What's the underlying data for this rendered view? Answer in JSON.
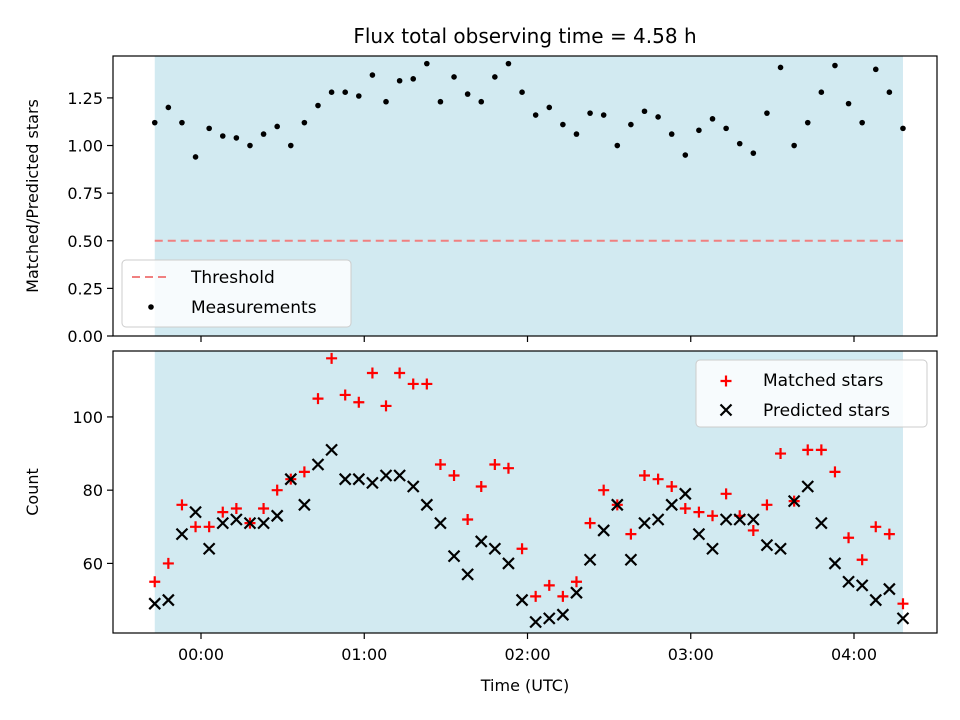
{
  "chart_data": [
    {
      "type": "scatter",
      "title": "Flux total observing time = 4.58 h",
      "ylabel": "Matched/Predicted stars",
      "xlabel": "",
      "ylim": [
        0,
        1.47
      ],
      "yticks": [
        "0.00",
        "0.25",
        "0.50",
        "0.75",
        "1.00",
        "1.25"
      ],
      "xticks": [
        "00:00",
        "01:00",
        "02:00",
        "03:00",
        "04:00"
      ],
      "shaded_span": {
        "start": "23:43",
        "end": "04:18",
        "color": "#add8e6"
      },
      "threshold": {
        "name": "Threshold",
        "value": 0.5,
        "color": "#f08080",
        "style": "dashed"
      },
      "legend": {
        "placement": "lower-left",
        "entries": [
          "Threshold",
          "Measurements"
        ]
      },
      "series": [
        {
          "name": "Measurements",
          "color": "#000000",
          "marker": "dot",
          "x": [
            "23:43",
            "23:48",
            "23:53",
            "23:58",
            "00:03",
            "00:08",
            "00:13",
            "00:18",
            "00:23",
            "00:28",
            "00:33",
            "00:38",
            "00:43",
            "00:48",
            "00:53",
            "00:58",
            "01:03",
            "01:08",
            "01:13",
            "01:18",
            "01:23",
            "01:28",
            "01:33",
            "01:38",
            "01:43",
            "01:48",
            "01:53",
            "01:58",
            "02:03",
            "02:08",
            "02:13",
            "02:18",
            "02:23",
            "02:28",
            "02:33",
            "02:38",
            "02:43",
            "02:48",
            "02:53",
            "02:58",
            "03:03",
            "03:08",
            "03:13",
            "03:18",
            "03:23",
            "03:28",
            "03:33",
            "03:38",
            "03:43",
            "03:48",
            "03:53",
            "03:58",
            "04:03",
            "04:08",
            "04:13",
            "04:18"
          ],
          "y": [
            1.12,
            1.2,
            1.12,
            0.94,
            1.09,
            1.05,
            1.04,
            1.0,
            1.06,
            1.1,
            1.0,
            1.12,
            1.21,
            1.28,
            1.28,
            1.26,
            1.37,
            1.23,
            1.34,
            1.35,
            1.43,
            1.23,
            1.36,
            1.27,
            1.23,
            1.36,
            1.43,
            1.28,
            1.16,
            1.2,
            1.11,
            1.06,
            1.17,
            1.16,
            1.0,
            1.11,
            1.18,
            1.15,
            1.06,
            0.95,
            1.08,
            1.14,
            1.09,
            1.01,
            0.96,
            1.17,
            1.41,
            1.0,
            1.12,
            1.28,
            1.42,
            1.22,
            1.12,
            1.4,
            1.28,
            1.09
          ]
        }
      ]
    },
    {
      "type": "scatter",
      "title": "",
      "ylabel": "Count",
      "xlabel": "Time (UTC)",
      "ylim": [
        41,
        118
      ],
      "yticks": [
        "60",
        "80",
        "100"
      ],
      "xticks": [
        "00:00",
        "01:00",
        "02:00",
        "03:00",
        "04:00"
      ],
      "shaded_span": {
        "start": "23:43",
        "end": "04:18",
        "color": "#add8e6"
      },
      "legend": {
        "placement": "top-right",
        "entries": [
          "Matched stars",
          "Predicted stars"
        ]
      },
      "series": [
        {
          "name": "Matched stars",
          "color": "#ff0000",
          "marker": "plus",
          "x": [
            "23:43",
            "23:48",
            "23:53",
            "23:58",
            "00:03",
            "00:08",
            "00:13",
            "00:18",
            "00:23",
            "00:28",
            "00:33",
            "00:38",
            "00:43",
            "00:48",
            "00:53",
            "00:58",
            "01:03",
            "01:08",
            "01:13",
            "01:18",
            "01:23",
            "01:28",
            "01:33",
            "01:38",
            "01:43",
            "01:48",
            "01:53",
            "01:58",
            "02:03",
            "02:08",
            "02:13",
            "02:18",
            "02:23",
            "02:28",
            "02:33",
            "02:38",
            "02:43",
            "02:48",
            "02:53",
            "02:58",
            "03:03",
            "03:08",
            "03:13",
            "03:18",
            "03:23",
            "03:28",
            "03:33",
            "03:38",
            "03:43",
            "03:48",
            "03:53",
            "03:58",
            "04:03",
            "04:08",
            "04:13",
            "04:18"
          ],
          "y": [
            55,
            60,
            76,
            70,
            70,
            74,
            75,
            71,
            75,
            80,
            83,
            85,
            105,
            116,
            106,
            104,
            112,
            103,
            112,
            109,
            109,
            87,
            84,
            72,
            81,
            87,
            86,
            64,
            51,
            54,
            51,
            55,
            71,
            80,
            76,
            68,
            84,
            83,
            81,
            75,
            74,
            73,
            79,
            73,
            69,
            76,
            90,
            77,
            91,
            91,
            85,
            67,
            61,
            70,
            68,
            49
          ]
        },
        {
          "name": "Predicted stars",
          "color": "#000000",
          "marker": "x",
          "x": [
            "23:43",
            "23:48",
            "23:53",
            "23:58",
            "00:03",
            "00:08",
            "00:13",
            "00:18",
            "00:23",
            "00:28",
            "00:33",
            "00:38",
            "00:43",
            "00:48",
            "00:53",
            "00:58",
            "01:03",
            "01:08",
            "01:13",
            "01:18",
            "01:23",
            "01:28",
            "01:33",
            "01:38",
            "01:43",
            "01:48",
            "01:53",
            "01:58",
            "02:03",
            "02:08",
            "02:13",
            "02:18",
            "02:23",
            "02:28",
            "02:33",
            "02:38",
            "02:43",
            "02:48",
            "02:53",
            "02:58",
            "03:03",
            "03:08",
            "03:13",
            "03:18",
            "03:23",
            "03:28",
            "03:33",
            "03:38",
            "03:43",
            "03:48",
            "03:53",
            "03:58",
            "04:03",
            "04:08",
            "04:13",
            "04:18"
          ],
          "y": [
            49,
            50,
            68,
            74,
            64,
            71,
            72,
            71,
            71,
            73,
            83,
            76,
            87,
            91,
            83,
            83,
            82,
            84,
            84,
            81,
            76,
            71,
            62,
            57,
            66,
            64,
            60,
            50,
            44,
            45,
            46,
            52,
            61,
            69,
            76,
            61,
            71,
            72,
            76,
            79,
            68,
            64,
            72,
            72,
            72,
            65,
            64,
            77,
            81,
            71,
            60,
            55,
            54,
            50,
            53,
            45
          ]
        }
      ]
    }
  ]
}
